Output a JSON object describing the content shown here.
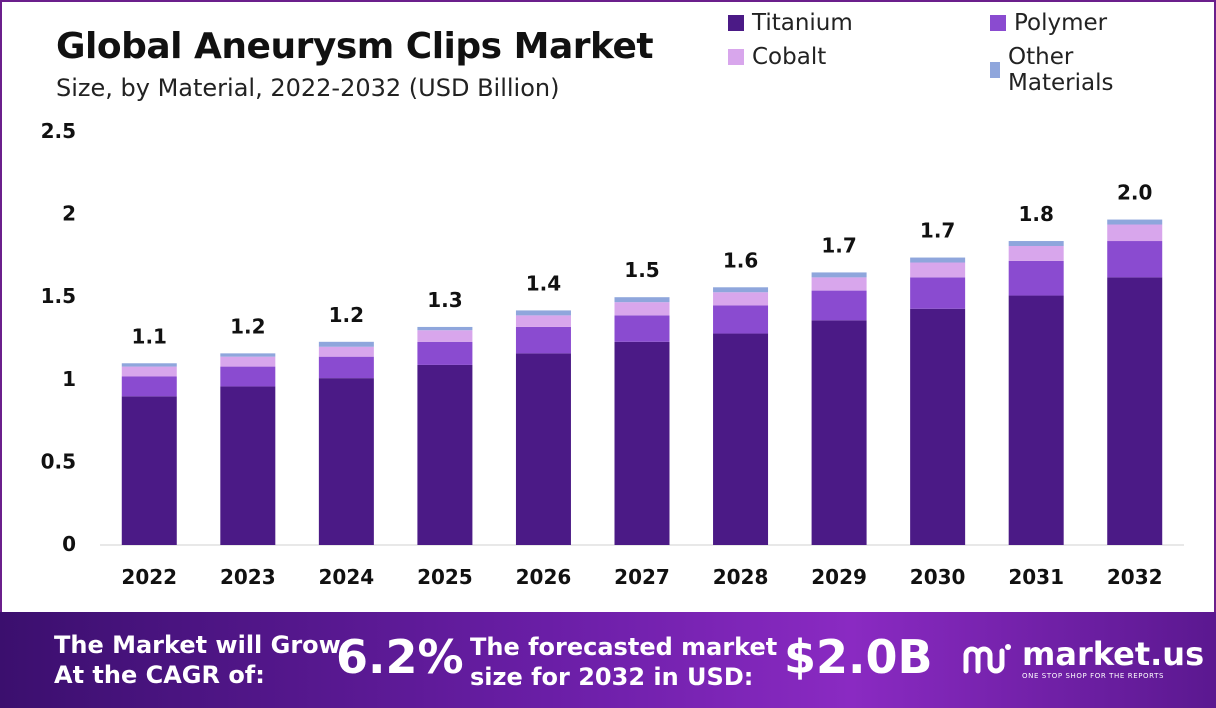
{
  "title": "Global Aneurysm Clips Market",
  "subtitle": "Size, by Material, 2022-2032 (USD Billion)",
  "legend": [
    {
      "label": "Titanium",
      "color": "#4b1a86"
    },
    {
      "label": "Polymer",
      "color": "#8a4bd0"
    },
    {
      "label": "Cobalt",
      "color": "#d8a6ec"
    },
    {
      "label": "Other Materials",
      "color": "#8fa6dc"
    }
  ],
  "chart_data": {
    "type": "bar",
    "stacked": true,
    "categories": [
      "2022",
      "2023",
      "2024",
      "2025",
      "2026",
      "2027",
      "2028",
      "2029",
      "2030",
      "2031",
      "2032"
    ],
    "series": [
      {
        "name": "Titanium",
        "color": "#4b1a86",
        "values": [
          0.9,
          0.96,
          1.01,
          1.09,
          1.16,
          1.23,
          1.28,
          1.36,
          1.43,
          1.51,
          1.62
        ]
      },
      {
        "name": "Polymer",
        "color": "#8a4bd0",
        "values": [
          0.12,
          0.12,
          0.13,
          0.14,
          0.16,
          0.16,
          0.17,
          0.18,
          0.19,
          0.21,
          0.22
        ]
      },
      {
        "name": "Cobalt",
        "color": "#d8a6ec",
        "values": [
          0.06,
          0.06,
          0.06,
          0.07,
          0.07,
          0.08,
          0.08,
          0.08,
          0.09,
          0.09,
          0.1
        ]
      },
      {
        "name": "Other Materials",
        "color": "#8fa6dc",
        "values": [
          0.02,
          0.02,
          0.03,
          0.02,
          0.03,
          0.03,
          0.03,
          0.03,
          0.03,
          0.03,
          0.03
        ]
      }
    ],
    "totals_labels": [
      "1.1",
      "1.2",
      "1.2",
      "1.3",
      "1.4",
      "1.5",
      "1.6",
      "1.7",
      "1.7",
      "1.8",
      "2.0"
    ],
    "ylim": [
      0,
      2.5
    ],
    "yticks": [
      "0",
      "0.5",
      "1",
      "1.5",
      "2",
      "2.5"
    ],
    "ytick_values": [
      0,
      0.5,
      1,
      1.5,
      2,
      2.5
    ],
    "grid": false,
    "legend_position": "top-right"
  },
  "footer": {
    "cagr_label_line1": "The Market will Grow",
    "cagr_label_line2": "At the CAGR of:",
    "cagr_value": "6.2%",
    "forecast_label_line1": "The forecasted market",
    "forecast_label_line2": "size for 2032 in USD:",
    "forecast_value": "$2.0B",
    "brand_name": "market.us",
    "brand_tagline": "ONE STOP SHOP FOR THE REPORTS"
  }
}
